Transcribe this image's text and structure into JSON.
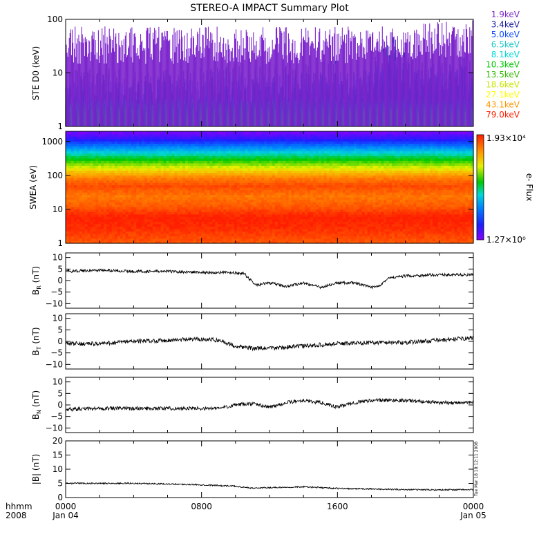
{
  "title": "STEREO-A IMPACT Summary Plot",
  "time_axis": {
    "row_label_1": "hhmm",
    "row_label_2": "2008",
    "ticks": [
      {
        "hhmm": "0000",
        "date": "Jan 04",
        "hours": 0
      },
      {
        "hhmm": "0800",
        "date": "",
        "hours": 8
      },
      {
        "hhmm": "1600",
        "date": "",
        "hours": 16
      },
      {
        "hhmm": "0000",
        "date": "Jan 05",
        "hours": 24
      }
    ]
  },
  "timestamp": "Tue Mar 18 18:12:11 2008",
  "colors": {
    "frame": "#000000",
    "trace": "#000000"
  },
  "chart_data": [
    {
      "id": "ste",
      "type": "line",
      "ylabel": "STE D0 (keV)",
      "yscale": "log",
      "ylim": [
        1,
        100
      ],
      "yticks": [
        {
          "v": 1,
          "label": "1"
        },
        {
          "v": 10,
          "label": "10"
        },
        {
          "v": 100,
          "label": "100"
        }
      ],
      "series": [
        {
          "name": "1.9keV",
          "color": "#7d26cd",
          "base": 33,
          "noise": 0.35,
          "bump": 0
        },
        {
          "name": "3.4keV",
          "color": "#1a1aa0",
          "base": 5.0,
          "noise": 0.4,
          "bump": 2.2
        },
        {
          "name": "5.0keV",
          "color": "#0b4bff",
          "base": 3.5,
          "noise": 0.35,
          "bump": 1.5
        },
        {
          "name": "6.5keV",
          "color": "#1ec8c8",
          "base": 2.9,
          "noise": 0.1,
          "bump": 0
        },
        {
          "name": "8.1keV",
          "color": "#00d8d8",
          "base": 2.6,
          "noise": 0.1,
          "bump": 0
        },
        {
          "name": "10.3keV",
          "color": "#00c800",
          "base": 2.4,
          "noise": 0.1,
          "bump": 0
        },
        {
          "name": "13.5keV",
          "color": "#33bb00",
          "base": 2.2,
          "noise": 0.1,
          "bump": 0
        },
        {
          "name": "18.6keV",
          "color": "#c8e600",
          "base": 2.0,
          "noise": 0.1,
          "bump": 0
        },
        {
          "name": "27.1keV",
          "color": "#ffff00",
          "base": 1.9,
          "noise": 0.08,
          "bump": 0
        },
        {
          "name": "43.1keV",
          "color": "#ff9600",
          "base": 1.7,
          "noise": 0.08,
          "bump": 0
        },
        {
          "name": "79.0keV",
          "color": "#ff1e00",
          "base": 1.4,
          "noise": 0.08,
          "bump": 0
        }
      ]
    },
    {
      "id": "swea",
      "type": "heatmap",
      "ylabel": "SWEA (eV)",
      "yscale": "log",
      "ylim": [
        1,
        2000
      ],
      "yticks": [
        {
          "v": 1,
          "label": "1"
        },
        {
          "v": 10,
          "label": "10"
        },
        {
          "v": 100,
          "label": "100"
        },
        {
          "v": 1000,
          "label": "1000"
        }
      ],
      "colorbar": {
        "label": "e- Flux",
        "max_label": "1.93×10⁴",
        "min_label": "1.27×10⁰",
        "min": 1.27,
        "max": 19300,
        "scale": "log"
      },
      "energy_profile": [
        {
          "energy_ev": 1,
          "flux": 9000
        },
        {
          "energy_ev": 3,
          "flux": 16000
        },
        {
          "energy_ev": 6,
          "flux": 19300
        },
        {
          "energy_ev": 12,
          "flux": 9000
        },
        {
          "energy_ev": 25,
          "flux": 6000
        },
        {
          "energy_ev": 50,
          "flux": 11000
        },
        {
          "energy_ev": 90,
          "flux": 5000
        },
        {
          "energy_ev": 150,
          "flux": 1500
        },
        {
          "energy_ev": 250,
          "flux": 400
        },
        {
          "energy_ev": 400,
          "flux": 120
        },
        {
          "energy_ev": 700,
          "flux": 25
        },
        {
          "energy_ev": 1200,
          "flux": 4
        },
        {
          "energy_ev": 2000,
          "flux": 1.5
        }
      ]
    },
    {
      "id": "br",
      "type": "line",
      "ylabel_main": "B",
      "ylabel_sub": "R",
      "ylabel_unit": " (nT)",
      "ylim": [
        -12,
        12
      ],
      "yticks": [
        {
          "v": -10,
          "label": "−10"
        },
        {
          "v": -5,
          "label": "−5"
        },
        {
          "v": 0,
          "label": "0"
        },
        {
          "v": 5,
          "label": "5"
        },
        {
          "v": 10,
          "label": "10"
        }
      ],
      "series": [
        {
          "x_hours": [
            0,
            2,
            4,
            6,
            8,
            9.5,
            10.5,
            11.2,
            12,
            13,
            14,
            15,
            16,
            17,
            18,
            18.5,
            19,
            20,
            22,
            24
          ],
          "y": [
            4,
            4.5,
            4,
            4,
            3.5,
            3.5,
            3,
            -2,
            -1,
            -2.5,
            -1,
            -3,
            -1,
            -1,
            -3,
            -2,
            1,
            2,
            2.5,
            2.5
          ],
          "noise": 0.6
        }
      ]
    },
    {
      "id": "bt",
      "type": "line",
      "ylabel_main": "B",
      "ylabel_sub": "T",
      "ylabel_unit": " (nT)",
      "ylim": [
        -12,
        12
      ],
      "yticks": [
        {
          "v": -10,
          "label": "−10"
        },
        {
          "v": -5,
          "label": "−5"
        },
        {
          "v": 0,
          "label": "0"
        },
        {
          "v": 5,
          "label": "5"
        },
        {
          "v": 10,
          "label": "10"
        }
      ],
      "series": [
        {
          "x_hours": [
            0,
            2,
            4,
            6,
            8,
            9,
            10,
            11,
            12,
            14,
            16,
            18,
            20,
            22,
            24
          ],
          "y": [
            -1,
            -1,
            0,
            0.5,
            1,
            0.5,
            -2,
            -3,
            -3,
            -2,
            -1,
            -0.5,
            -0.5,
            0.5,
            1.5
          ],
          "noise": 0.9
        }
      ]
    },
    {
      "id": "bn",
      "type": "line",
      "ylabel_main": "B",
      "ylabel_sub": "N",
      "ylabel_unit": " (nT)",
      "ylim": [
        -12,
        12
      ],
      "yticks": [
        {
          "v": -10,
          "label": "−10"
        },
        {
          "v": -5,
          "label": "−5"
        },
        {
          "v": 0,
          "label": "0"
        },
        {
          "v": 5,
          "label": "5"
        },
        {
          "v": 10,
          "label": "10"
        }
      ],
      "series": [
        {
          "x_hours": [
            0,
            2,
            4,
            6,
            8,
            9,
            10,
            11,
            12,
            13,
            14,
            15,
            16,
            17,
            18,
            20,
            22,
            24
          ],
          "y": [
            -2,
            -1.5,
            -1.5,
            -1.5,
            -1.5,
            -1.5,
            0,
            0.5,
            -1,
            1,
            2,
            1,
            -1,
            1,
            2,
            2,
            1,
            1
          ],
          "noise": 0.8
        }
      ]
    },
    {
      "id": "bmag",
      "type": "line",
      "ylabel": "|B| (nT)",
      "ylim": [
        0,
        20
      ],
      "yticks": [
        {
          "v": 0,
          "label": "0"
        },
        {
          "v": 5,
          "label": "5"
        },
        {
          "v": 10,
          "label": "10"
        },
        {
          "v": 15,
          "label": "15"
        },
        {
          "v": 20,
          "label": "20"
        }
      ],
      "series": [
        {
          "x_hours": [
            0,
            2,
            4,
            6,
            8,
            10,
            11,
            12,
            14,
            16,
            18,
            20,
            22,
            24
          ],
          "y": [
            5,
            5,
            5,
            4.8,
            4.5,
            4,
            3.3,
            3.5,
            3.8,
            3.2,
            3,
            2.8,
            2.7,
            2.8
          ],
          "noise": 0.25
        }
      ]
    }
  ]
}
